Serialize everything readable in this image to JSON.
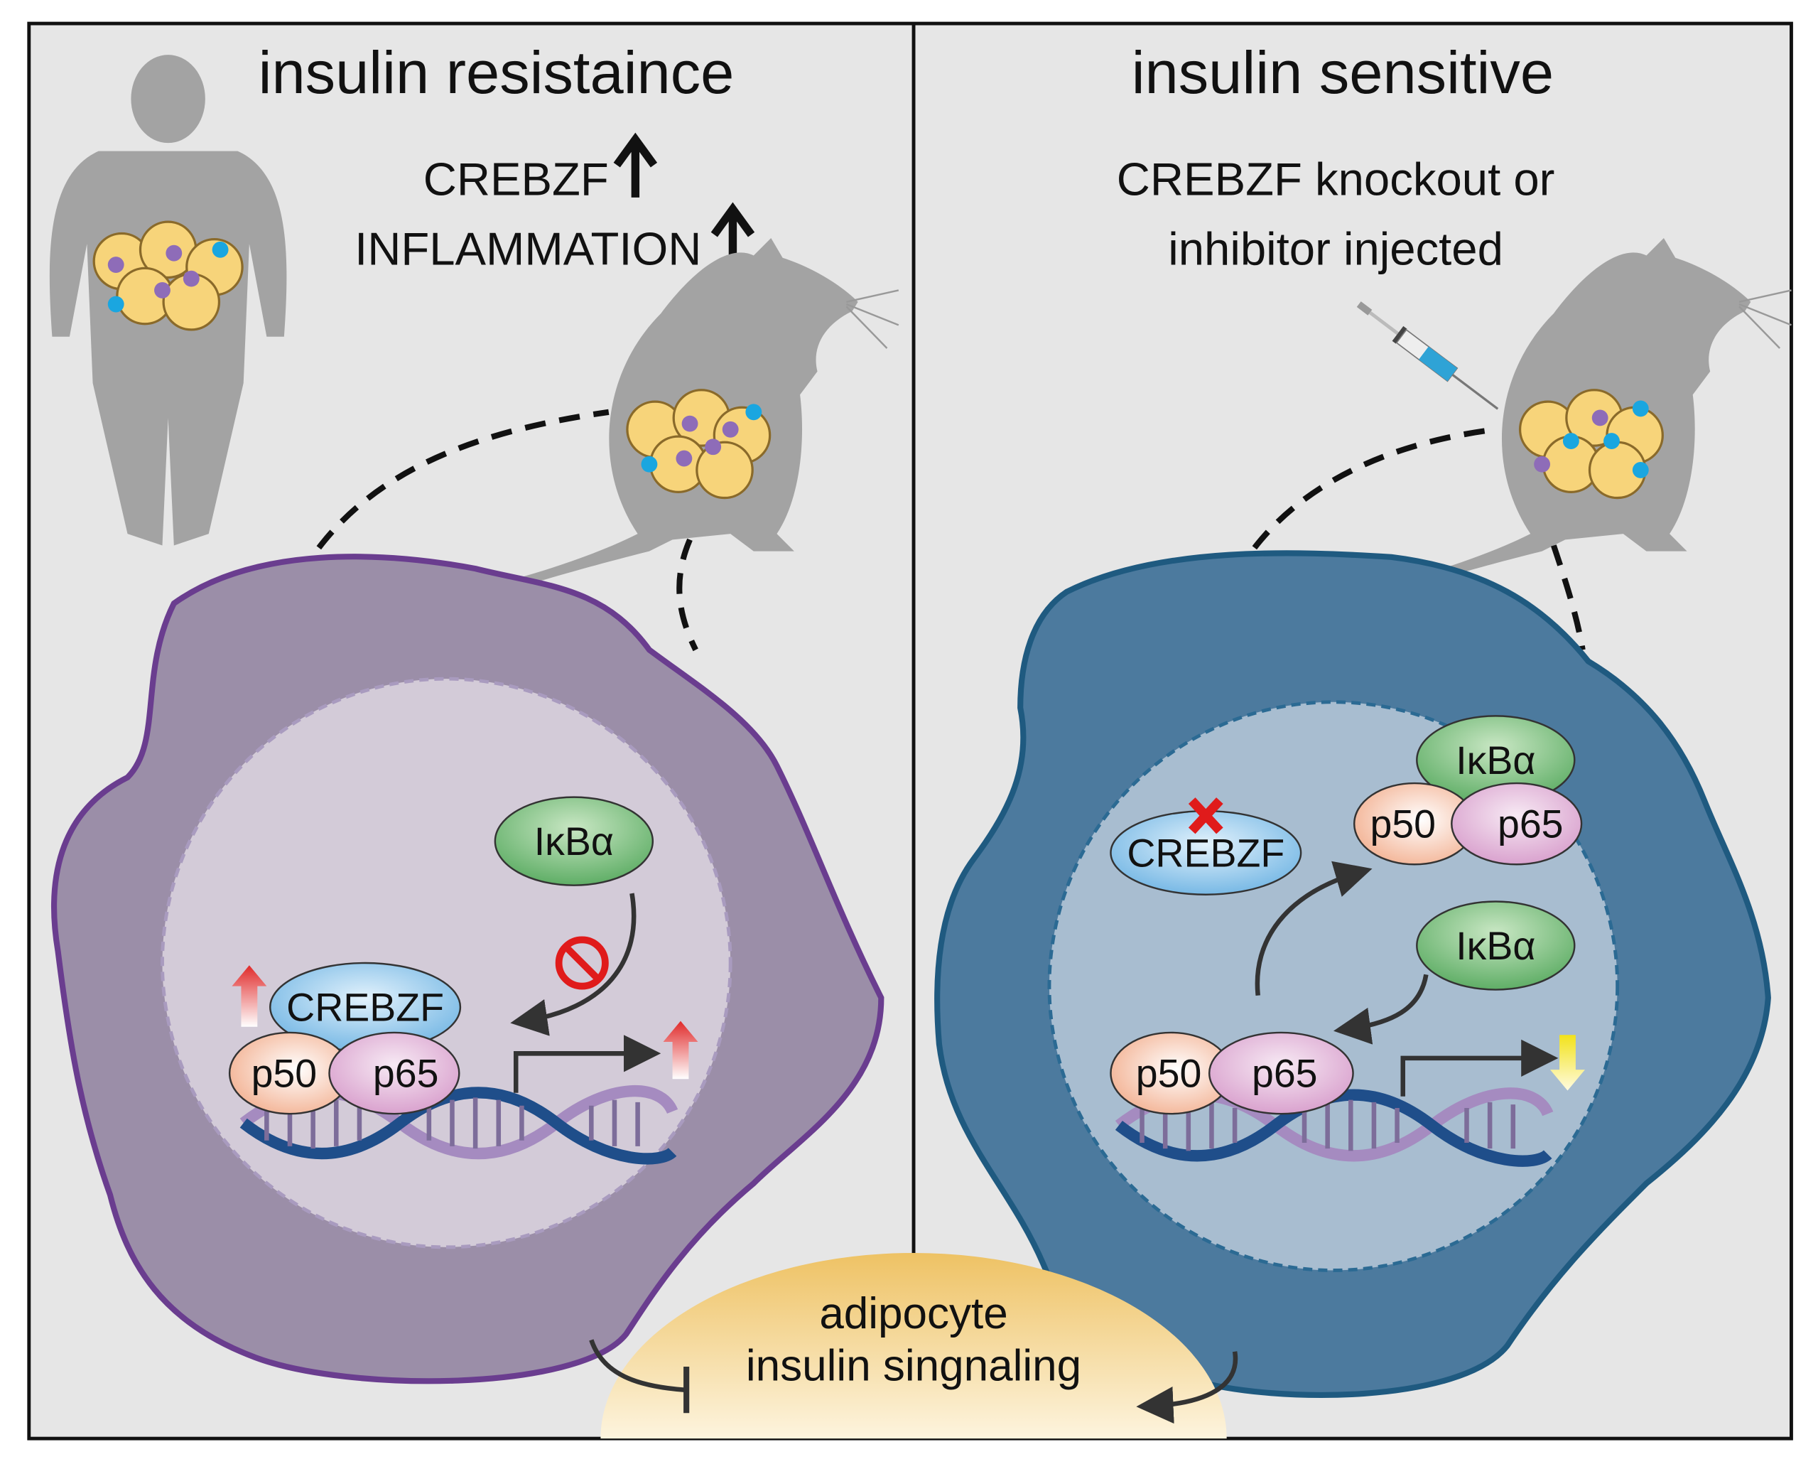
{
  "left_panel": {
    "title": "insulin resistaince",
    "marker_1": "CREBZF",
    "marker_2": "INFLAMMATION",
    "proteins": {
      "ikba": "IκBα",
      "crebzf": "CREBZF",
      "p50": "p50",
      "p65": "p65"
    },
    "cell_color": "#9b8ea8",
    "cell_border": "#6a3d8f"
  },
  "right_panel": {
    "title": "insulin sensitive",
    "subtitle_1": "CREBZF knockout or",
    "subtitle_2": "inhibitor injected",
    "proteins": {
      "ikba_top": "IκBα",
      "p50_top": "p50",
      "p65_top": "p65",
      "crebzf": "CREBZF",
      "ikba": "IκBα",
      "p50": "p50",
      "p65": "p65"
    },
    "cell_color": "#4c7a9e",
    "cell_border": "#1f5a80"
  },
  "bottom": {
    "line_1": "adipocyte",
    "line_2": "insulin singnaling"
  },
  "icons": [
    "human-silhouette-icon",
    "mouse-icon",
    "syringe-icon",
    "up-arrow-icon",
    "down-arrow-icon",
    "prohibition-icon",
    "knockout-x-icon",
    "dna-helix-icon"
  ]
}
